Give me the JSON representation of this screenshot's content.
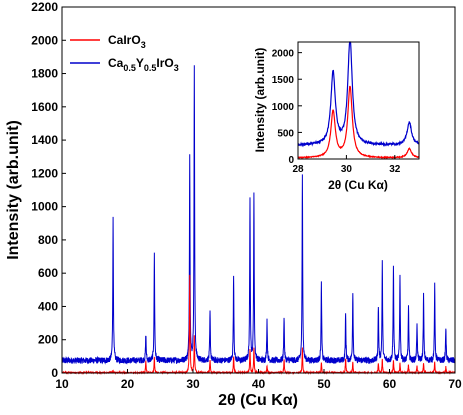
{
  "chart_data": [
    {
      "type": "line",
      "title": "",
      "xlabel": "2θ (Cu Kα)",
      "ylabel": "Intensity (arb.unit)",
      "xlim": [
        10,
        70
      ],
      "ylim": [
        0,
        2200
      ],
      "x_ticks": [
        10,
        20,
        30,
        40,
        50,
        60,
        70
      ],
      "y_ticks": [
        0,
        200,
        400,
        600,
        800,
        1000,
        1200,
        1400,
        1600,
        1800,
        2000,
        2200
      ],
      "legend": {
        "placement": "top-left"
      },
      "series": [
        {
          "name": "CaIrO3",
          "name_main": "CaIrO",
          "name_sub": "3",
          "color": "#ff0000",
          "baseline": 0,
          "peaks": [
            [
              17.8,
              10
            ],
            [
              22.8,
              70
            ],
            [
              24.1,
              90
            ],
            [
              29.5,
              590
            ],
            [
              30.2,
              220
            ],
            [
              32.6,
              80
            ],
            [
              36.2,
              100
            ],
            [
              38.7,
              150
            ],
            [
              39.3,
              150
            ],
            [
              41.3,
              40
            ],
            [
              43.9,
              80
            ],
            [
              46.7,
              150
            ],
            [
              49.6,
              60
            ],
            [
              53.3,
              90
            ],
            [
              54.4,
              60
            ],
            [
              58.3,
              60
            ],
            [
              58.9,
              80
            ],
            [
              60.6,
              80
            ],
            [
              61.6,
              60
            ],
            [
              62.9,
              50
            ],
            [
              64.2,
              40
            ],
            [
              65.2,
              60
            ],
            [
              66.9,
              70
            ],
            [
              68.6,
              35
            ]
          ]
        },
        {
          "name": "Ca0.5Y0.5IrO3",
          "name_main1": "Ca",
          "name_sub1": "0.5",
          "name_main2": "Y",
          "name_sub2": "0.5",
          "name_main3": "IrO",
          "name_sub3": "3",
          "color": "#0000cc",
          "baseline": 75,
          "peaks": [
            [
              17.8,
              850
            ],
            [
              22.8,
              160
            ],
            [
              24.1,
              640
            ],
            [
              29.5,
              1230
            ],
            [
              30.2,
              1770
            ],
            [
              32.6,
              290
            ],
            [
              36.2,
              510
            ],
            [
              38.7,
              970
            ],
            [
              39.3,
              1000
            ],
            [
              41.3,
              245
            ],
            [
              43.9,
              270
            ],
            [
              46.7,
              1110
            ],
            [
              49.6,
              465
            ],
            [
              53.3,
              280
            ],
            [
              54.4,
              420
            ],
            [
              58.3,
              330
            ],
            [
              58.9,
              585
            ],
            [
              60.6,
              580
            ],
            [
              61.6,
              520
            ],
            [
              62.9,
              330
            ],
            [
              64.2,
              230
            ],
            [
              65.2,
              395
            ],
            [
              66.9,
              450
            ],
            [
              68.6,
              200
            ]
          ]
        }
      ]
    },
    {
      "type": "line",
      "title": "",
      "xlabel": "2θ (Cu Kα)",
      "ylabel": "Intensity (arb.unit)",
      "xlim": [
        28,
        33
      ],
      "ylim": [
        0,
        2200
      ],
      "x_ticks": [
        28,
        30,
        32
      ],
      "y_ticks": [
        0,
        500,
        1000,
        1500,
        2000
      ],
      "series": [
        {
          "name": "CaIrO3",
          "color": "#ff0000",
          "baseline": 20,
          "peaks": [
            [
              29.45,
              870
            ],
            [
              30.15,
              1330
            ],
            [
              32.6,
              170
            ]
          ]
        },
        {
          "name": "Ca0.5Y0.5IrO3",
          "color": "#0000cc",
          "baseline": 260,
          "peaks": [
            [
              29.45,
              1360
            ],
            [
              30.15,
              1980
            ],
            [
              32.6,
              430
            ]
          ]
        }
      ]
    }
  ]
}
